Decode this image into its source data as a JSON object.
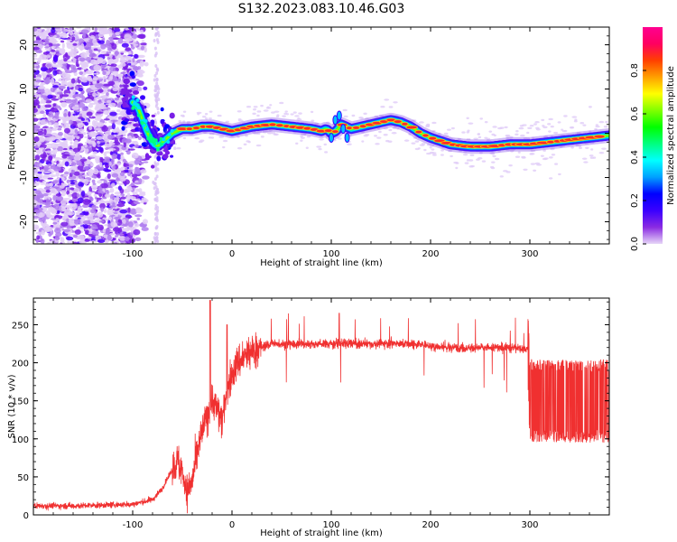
{
  "title": "S132.2023.083.10.46.G03",
  "chart_data": [
    {
      "type": "heatmap",
      "xlabel": "Height of straight line (km)",
      "ylabel": "Frequency (Hz)",
      "xlim": [
        -200,
        380
      ],
      "ylim": [
        -25,
        24
      ],
      "xticks": [
        -100,
        0,
        100,
        200,
        300
      ],
      "yticks": [
        20,
        10,
        0,
        -10,
        -20
      ],
      "colorbar": {
        "label": "Normalized spectral amplitude",
        "range": [
          0,
          1
        ],
        "ticks": [
          0.0,
          0.2,
          0.4,
          0.6,
          0.8
        ],
        "colors": [
          "#e6d6f7",
          "#8a2be2",
          "#3a00ff",
          "#0000ff",
          "#00a0ff",
          "#00ffff",
          "#00ff80",
          "#00ff00",
          "#80ff00",
          "#ffff00",
          "#ffa000",
          "#ff4000",
          "#ff0060",
          "#ff0090"
        ]
      },
      "ridge": {
        "x": [
          -100,
          -95,
          -90,
          -85,
          -80,
          -75,
          -70,
          -65,
          -60,
          -55,
          -50,
          -40,
          -30,
          -20,
          -10,
          0,
          10,
          20,
          40,
          60,
          80,
          90,
          95,
          100,
          105,
          110,
          115,
          120,
          130,
          140,
          150,
          160,
          170,
          180,
          190,
          200,
          220,
          240,
          260,
          280,
          300,
          320,
          340,
          360,
          380
        ],
        "y": [
          7,
          6,
          3,
          0,
          -2,
          -3,
          -2,
          -1,
          0,
          0.5,
          1,
          1,
          1.5,
          1.5,
          1,
          0.5,
          1,
          1.5,
          2,
          1.5,
          1,
          0.5,
          1,
          0,
          0.5,
          2,
          1.5,
          1,
          1.5,
          2,
          2.5,
          3,
          2.5,
          1.5,
          0,
          -1,
          -2.5,
          -3,
          -3,
          -2.5,
          -2.5,
          -2,
          -1.5,
          -1,
          -0.5
        ]
      }
    },
    {
      "type": "line",
      "xlabel": "Height of straight line (km)",
      "ylabel": "SNR (10 * v/v)",
      "xlim": [
        -200,
        380
      ],
      "ylim": [
        0,
        285
      ],
      "xticks": [
        -100,
        0,
        100,
        200,
        300
      ],
      "yticks": [
        0,
        50,
        100,
        150,
        200,
        250
      ],
      "color": "#f03030",
      "series": [
        {
          "x": [
            -200,
            -150,
            -100,
            -80,
            -70,
            -60,
            -55,
            -50,
            -45,
            -40,
            -35,
            -30,
            -25,
            -20,
            -15,
            -10,
            -5,
            0,
            5,
            10,
            20,
            30,
            40,
            60,
            80,
            100,
            120,
            140,
            160,
            180,
            200,
            220,
            240,
            260,
            280,
            298,
            300,
            320,
            340,
            360,
            380
          ],
          "y": [
            12,
            12,
            14,
            20,
            35,
            60,
            70,
            55,
            30,
            45,
            80,
            110,
            130,
            150,
            140,
            125,
            160,
            185,
            200,
            205,
            215,
            220,
            225,
            225,
            225,
            225,
            225,
            225,
            225,
            225,
            222,
            220,
            220,
            220,
            220,
            218,
            150,
            150,
            150,
            150,
            150
          ]
        }
      ]
    }
  ]
}
